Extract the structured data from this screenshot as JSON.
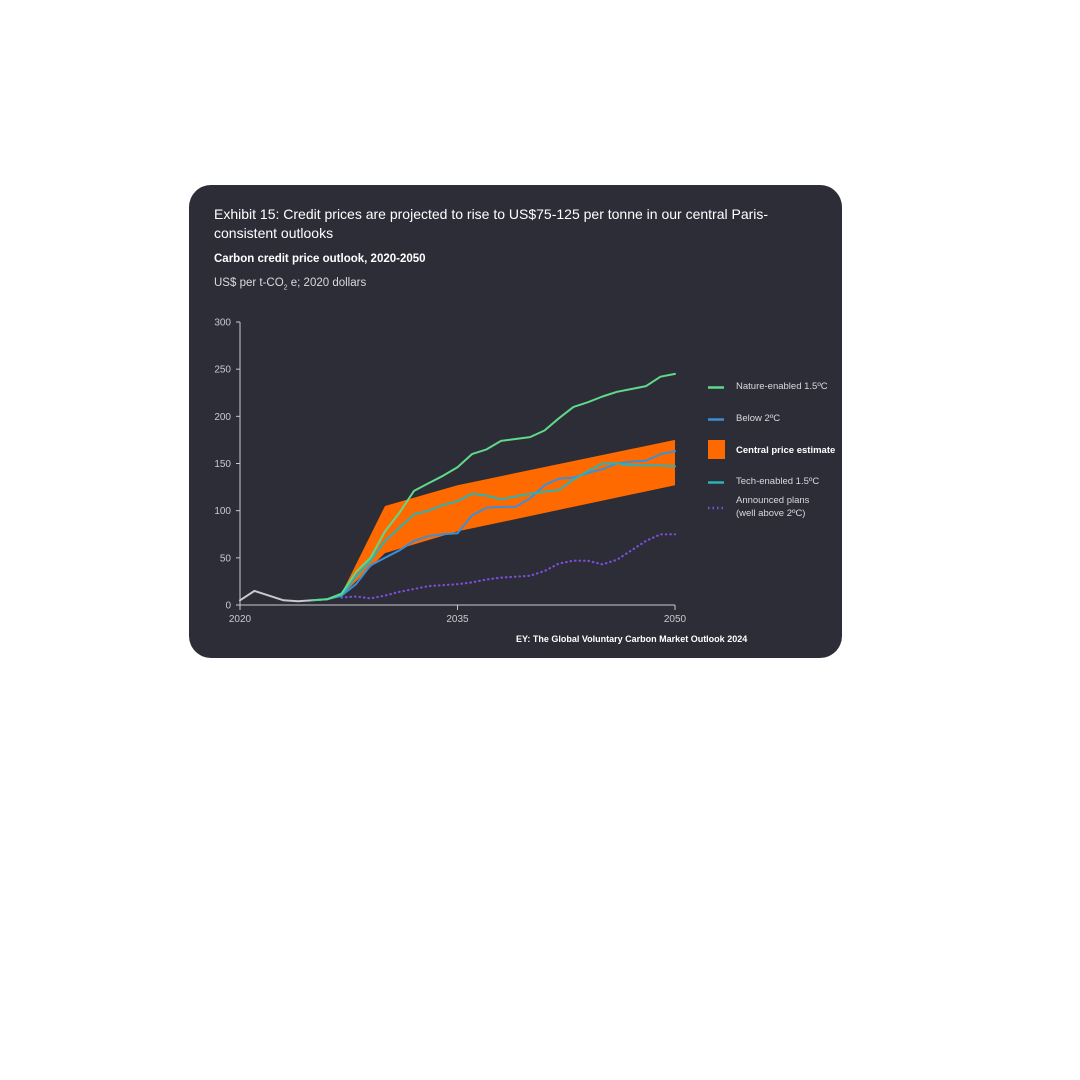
{
  "card": {
    "title": "Exhibit 15: Credit prices are projected to rise to US$75-125 per tonne in our central Paris-consistent outlooks",
    "subtitle": "Carbon credit price outlook, 2020-2050",
    "units_prefix": "US$ per t-CO",
    "units_sub": "2",
    "units_suffix": " e; 2020 dollars",
    "source": "EY: The Global Voluntary Carbon Market Outlook 2024"
  },
  "colors": {
    "background": "#2d2d38",
    "nature": "#5fd98a",
    "below2": "#3a8fd9",
    "central": "#ff6a00",
    "tech": "#2ab3b3",
    "announced": "#7a4fd8",
    "history": "#c9c9d0"
  },
  "legend": {
    "nature": "Nature-enabled 1.5ºC",
    "below2": "Below 2ºC",
    "central": "Central price estimate",
    "tech": "Tech-enabled 1.5ºC",
    "announced_line1": "Announced plans",
    "announced_line2": "(well above 2ºC)"
  },
  "chart_data": {
    "type": "line",
    "title": "Carbon credit price outlook, 2020-2050",
    "ylabel": "US$ per t-CO2e; 2020 dollars",
    "xlabel": "",
    "xlim": [
      2020,
      2050
    ],
    "ylim": [
      0,
      300
    ],
    "x_ticks": [
      "2020",
      "2035",
      "2050"
    ],
    "y_ticks": [
      "0",
      "50",
      "100",
      "150",
      "200",
      "250",
      "300"
    ],
    "legend_position": "right",
    "history": {
      "x": [
        2020,
        2021,
        2023,
        2024,
        2025
      ],
      "values": [
        5,
        15,
        5,
        4,
        5
      ]
    },
    "band": {
      "name": "Central price estimate",
      "x": [
        2027,
        2030,
        2035,
        2050
      ],
      "lower": [
        10,
        55,
        78,
        127
      ],
      "upper": [
        12,
        105,
        127,
        175
      ]
    },
    "series": [
      {
        "name": "Nature-enabled 1.5ºC",
        "color": "#5fd98a",
        "style": "solid",
        "x": [
          2025,
          2026,
          2027,
          2028,
          2029,
          2030,
          2031,
          2032,
          2033,
          2034,
          2035,
          2036,
          2037,
          2038,
          2039,
          2040,
          2041,
          2042,
          2043,
          2044,
          2045,
          2046,
          2047,
          2048,
          2049,
          2050
        ],
        "values": [
          5,
          6,
          12,
          35,
          50,
          78,
          98,
          121,
          129,
          137,
          146,
          160,
          165,
          174,
          176,
          178,
          185,
          198,
          210,
          215,
          221,
          226,
          229,
          232,
          242,
          245
        ]
      },
      {
        "name": "Below 2ºC",
        "color": "#3a8fd9",
        "style": "solid",
        "x": [
          2025,
          2026,
          2027,
          2028,
          2029,
          2030,
          2031,
          2032,
          2033,
          2034,
          2035,
          2036,
          2037,
          2038,
          2039,
          2040,
          2041,
          2042,
          2043,
          2044,
          2045,
          2046,
          2047,
          2048,
          2049,
          2050
        ],
        "values": [
          5,
          6,
          10,
          22,
          42,
          50,
          58,
          68,
          73,
          75,
          76,
          95,
          103,
          104,
          104,
          113,
          127,
          134,
          135,
          140,
          144,
          150,
          152,
          153,
          160,
          163
        ]
      },
      {
        "name": "Tech-enabled 1.5ºC",
        "color": "#2ab3b3",
        "style": "solid",
        "x": [
          2025,
          2026,
          2027,
          2028,
          2029,
          2030,
          2031,
          2032,
          2033,
          2034,
          2035,
          2036,
          2037,
          2038,
          2039,
          2040,
          2041,
          2042,
          2043,
          2044,
          2045,
          2046,
          2047,
          2048,
          2049,
          2050
        ],
        "values": [
          5,
          6,
          10,
          30,
          47,
          68,
          82,
          96,
          100,
          106,
          110,
          118,
          116,
          112,
          115,
          118,
          120,
          122,
          133,
          142,
          150,
          150,
          148,
          148,
          148,
          147
        ]
      },
      {
        "name": "Announced plans (well above 2ºC)",
        "color": "#7a4fd8",
        "style": "dotted",
        "x": [
          2027,
          2028,
          2029,
          2030,
          2031,
          2032,
          2033,
          2034,
          2035,
          2036,
          2037,
          2038,
          2039,
          2040,
          2041,
          2042,
          2043,
          2044,
          2045,
          2046,
          2047,
          2048,
          2049,
          2050
        ],
        "values": [
          8,
          9,
          7,
          10,
          14,
          17,
          20,
          21,
          22,
          24,
          27,
          29,
          30,
          31,
          36,
          44,
          47,
          47,
          43,
          48,
          58,
          68,
          75,
          75
        ]
      }
    ]
  }
}
